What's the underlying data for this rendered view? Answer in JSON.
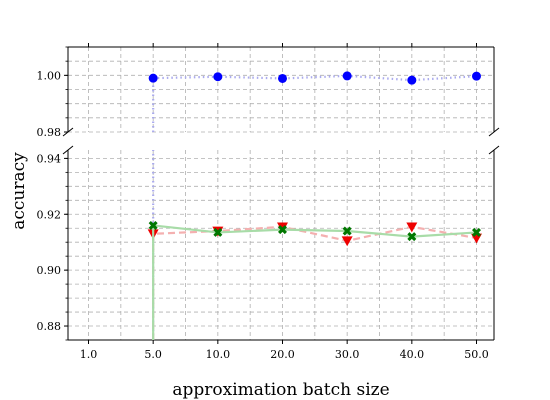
{
  "chart_data": {
    "type": "line",
    "xlabel": "approximation batch size",
    "ylabel": "accuracy",
    "categories": [
      "1.0",
      "5.0",
      "10.0",
      "20.0",
      "30.0",
      "40.0",
      "50.0"
    ],
    "broken_y_axis": true,
    "upper_panel": {
      "ylim": [
        0.98,
        1.01
      ],
      "ytick_labels": [
        "0.98",
        "1.00"
      ],
      "yticks": [
        0.98,
        1.0
      ]
    },
    "lower_panel": {
      "ylim": [
        0.875,
        0.943
      ],
      "ytick_labels": [
        "0.88",
        "0.90",
        "0.92",
        "0.94"
      ],
      "yticks": [
        0.88,
        0.9,
        0.92,
        0.94
      ]
    },
    "grid": true,
    "series": [
      {
        "marker": "circle",
        "color": "#0000ff",
        "line_color": "#aaaaee",
        "line_style": "dotted",
        "start_below": 0.875,
        "x": [
          "5.0",
          "10.0",
          "20.0",
          "30.0",
          "40.0",
          "50.0"
        ],
        "values": [
          0.999,
          0.9995,
          0.9989,
          0.9998,
          0.9983,
          0.9997
        ]
      },
      {
        "marker": "triangle-down",
        "color": "#ee0000",
        "line_color": "#f4b0b0",
        "line_style": "dashed",
        "start_below": 0.875,
        "x": [
          "5.0",
          "10.0",
          "20.0",
          "30.0",
          "40.0",
          "50.0"
        ],
        "values": [
          0.913,
          0.914,
          0.9155,
          0.9105,
          0.9155,
          0.9115
        ]
      },
      {
        "marker": "x-filled",
        "color": "#007700",
        "line_color": "#a8dca8",
        "line_style": "solid",
        "start_below": 0.875,
        "x": [
          "5.0",
          "10.0",
          "20.0",
          "30.0",
          "40.0",
          "50.0"
        ],
        "values": [
          0.916,
          0.9135,
          0.9145,
          0.914,
          0.912,
          0.9135
        ]
      }
    ]
  }
}
